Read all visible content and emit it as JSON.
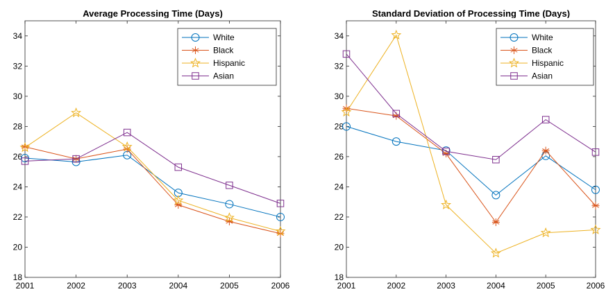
{
  "chart_data": [
    {
      "type": "line",
      "title": "Average Processing Time (Days)",
      "xlabel": "",
      "ylabel": "",
      "x": [
        2001,
        2002,
        2003,
        2004,
        2005,
        2006
      ],
      "xlim": [
        2001,
        2006
      ],
      "ylim": [
        18,
        35
      ],
      "yticks": [
        18,
        20,
        22,
        24,
        26,
        28,
        30,
        32,
        34
      ],
      "grid": false,
      "legend": "top-right",
      "series": [
        {
          "name": "White",
          "color": "#0072BD",
          "marker": "circle",
          "values": [
            25.9,
            25.65,
            26.1,
            23.6,
            22.85,
            22.0
          ]
        },
        {
          "name": "Black",
          "color": "#D95319",
          "marker": "asterisk",
          "values": [
            26.65,
            25.85,
            26.5,
            22.8,
            21.7,
            20.9
          ]
        },
        {
          "name": "Hispanic",
          "color": "#EDB120",
          "marker": "star",
          "values": [
            26.6,
            28.9,
            26.65,
            23.1,
            21.95,
            21.05
          ]
        },
        {
          "name": "Asian",
          "color": "#7E2F8E",
          "marker": "square",
          "values": [
            25.7,
            25.85,
            27.6,
            25.3,
            24.1,
            22.9
          ]
        }
      ]
    },
    {
      "type": "line",
      "title": "Standard Deviation of Processing Time (Days)",
      "xlabel": "",
      "ylabel": "",
      "x": [
        2001,
        2002,
        2003,
        2004,
        2005,
        2006
      ],
      "xlim": [
        2001,
        2006
      ],
      "ylim": [
        18,
        35
      ],
      "yticks": [
        18,
        20,
        22,
        24,
        26,
        28,
        30,
        32,
        34
      ],
      "grid": false,
      "legend": "top-right",
      "series": [
        {
          "name": "White",
          "color": "#0072BD",
          "marker": "circle",
          "values": [
            28.0,
            27.0,
            26.4,
            23.45,
            26.05,
            23.8
          ]
        },
        {
          "name": "Black",
          "color": "#D95319",
          "marker": "asterisk",
          "values": [
            29.2,
            28.7,
            26.2,
            21.65,
            26.4,
            22.75
          ]
        },
        {
          "name": "Hispanic",
          "color": "#EDB120",
          "marker": "star",
          "values": [
            28.95,
            34.05,
            22.8,
            19.6,
            20.95,
            21.15
          ]
        },
        {
          "name": "Asian",
          "color": "#7E2F8E",
          "marker": "square",
          "values": [
            32.8,
            28.85,
            26.35,
            25.8,
            28.45,
            26.3
          ]
        }
      ]
    }
  ]
}
